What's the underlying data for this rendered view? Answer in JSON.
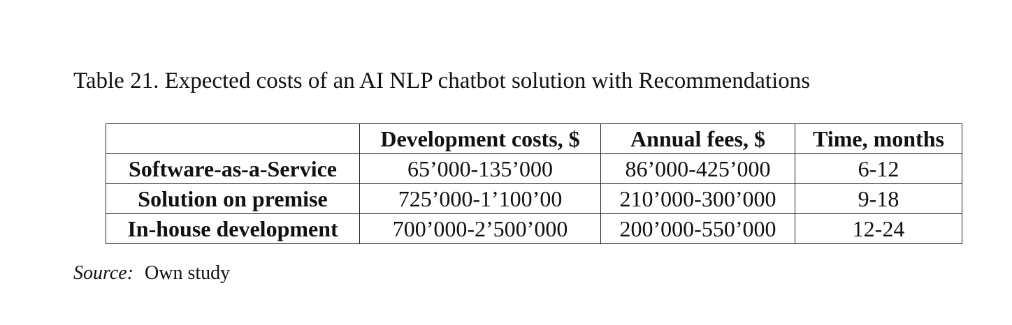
{
  "caption": "Table 21. Expected costs of an AI NLP chatbot solution with Recommendations",
  "table": {
    "headers": [
      "",
      "Development costs, $",
      "Annual fees, $",
      "Time, months"
    ],
    "rows": [
      {
        "label": "Software-as-a-Service",
        "dev": "65’000-135’000",
        "fees": "86’000-425’000",
        "time": "6-12"
      },
      {
        "label": "Solution on premise",
        "dev": "725’000-1’100’00",
        "fees": "210’000-300’000",
        "time": "9-18"
      },
      {
        "label": "In-house development",
        "dev": "700’000-2’500’000",
        "fees": "200’000-550’000",
        "time": "12-24"
      }
    ]
  },
  "source": {
    "label": "Source:",
    "text": "Own study"
  }
}
